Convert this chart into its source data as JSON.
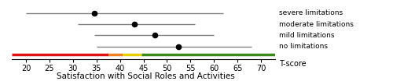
{
  "title": "Satisfaction with Social Roles and Activities",
  "tscore_label": "T-score",
  "xlim": [
    17,
    73
  ],
  "xticks": [
    20,
    25,
    30,
    35,
    40,
    45,
    50,
    55,
    60,
    65,
    70
  ],
  "categories": [
    "severe limitations",
    "moderate limitations",
    "mild limitations",
    "no limitations"
  ],
  "means": [
    34.5,
    43.0,
    47.5,
    52.5
  ],
  "ci_low": [
    20.0,
    31.0,
    34.5,
    35.0
  ],
  "ci_high": [
    62.0,
    56.0,
    60.0,
    68.0
  ],
  "threshold_segments": [
    {
      "xmin": 17,
      "xmax": 37.5,
      "color": "#dd1111"
    },
    {
      "xmin": 37.5,
      "xmax": 40.5,
      "color": "#f08020"
    },
    {
      "xmin": 40.5,
      "xmax": 44.5,
      "color": "#e8d000"
    },
    {
      "xmin": 44.5,
      "xmax": 73,
      "color": "#3a8a1a"
    }
  ],
  "marker_color": "black",
  "line_color": "#808080",
  "background_color": "#ffffff",
  "label_fontsize": 6.5,
  "tick_fontsize": 7,
  "title_fontsize": 7.5
}
